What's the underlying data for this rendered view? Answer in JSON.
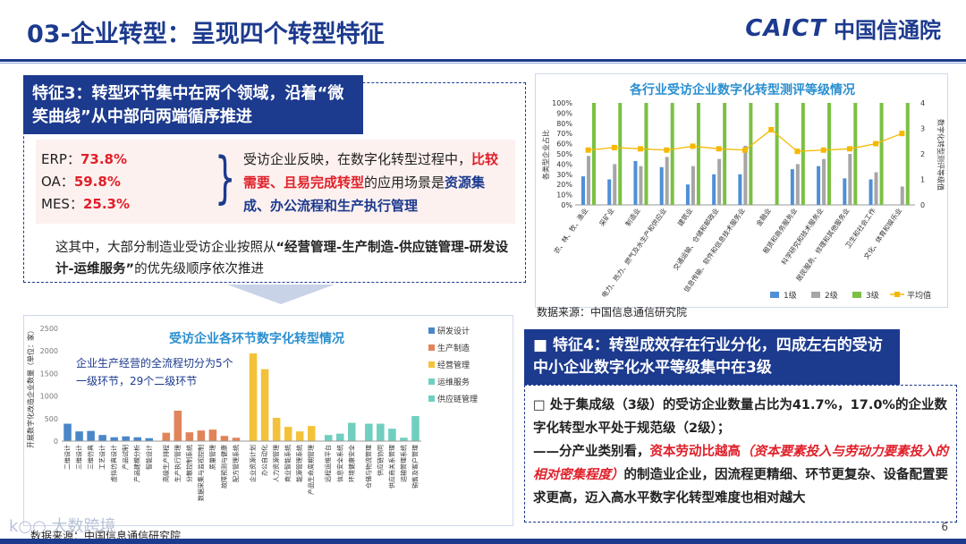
{
  "header": {
    "title": "03-企业转型：呈现四个转型特征",
    "logo_en": "CAICT",
    "logo_cn": "中国信通院"
  },
  "feature3": {
    "head": "特征3：转型环节集中在两个领域，沿着“微笑曲线”从中部向两端循序推进",
    "erp_label": "ERP：",
    "erp_value": "73.8%",
    "oa_label": "OA：",
    "oa_value": "59.8%",
    "mes_label": "MES：",
    "mes_value": "25.3%",
    "desc_1": "受访企业反映，在数字化转型过程中，",
    "desc_red": "比较需要、且易完成转型",
    "desc_2": "的应用场景是",
    "desc_blue": "资源集成、办公流程和生产执行管理",
    "note_1": "这其中，大部分制造业受访企业按照从",
    "note_bold": "“经营管理-生产制造-供应链管理-研发设计-运维服务”",
    "note_2": "的优先级顺序依次推进"
  },
  "chart_right_source": "数据来源：中国信息通信研究院",
  "chart_left_source": "数据来源：中国信息通信研究院",
  "feature4": {
    "head": "特征4：转型成效存在行业分化，四成左右的受访中小企业数字化水平等级集中在3级",
    "bullet": "处于集成级（3级）的受访企业数量占比为41.7%，17.0%的企业数字化转型水平处于规范级（2级）；",
    "sub_1": "——分产业类别看，",
    "sub_red": "资本劳动比越高",
    "sub_red_i": "（资本要素投入与劳动力要素投入的相对密集程度）",
    "sub_2": "的制造业企业，因流程更精细、环节更复杂、设备配置要求更高，迈入高水平数字化转型难度也相对越大"
  },
  "page_number": "6",
  "watermark": "k○○ 大数跨境",
  "chart_data": [
    {
      "type": "bar",
      "title": "各行业受访企业数字化转型测评等级情况",
      "ylabel": "各类型企业占比",
      "y2label": "数字化转型测评等级值",
      "ylim": [
        0,
        100
      ],
      "y2lim": [
        0,
        4
      ],
      "yticks": [
        "100%",
        "90%",
        "80%",
        "70%",
        "60%",
        "50%",
        "40%",
        "30%",
        "20%",
        "10%",
        "0%"
      ],
      "y2ticks": [
        "4",
        "3",
        "2",
        "1",
        "0"
      ],
      "categories": [
        "农、林、牧、渔业",
        "采矿业",
        "制造业",
        "电力、热力、燃气及水生产和供应业",
        "建筑业",
        "交通运输、仓储和邮政业",
        "信息传输、软件和信息技术服务业",
        "金融业",
        "租赁和商务服务业",
        "科学研究和技术服务业",
        "居民服务、修理和其他服务业",
        "卫生和社会工作",
        "文化、体育和娱乐业"
      ],
      "series": [
        {
          "name": "1级",
          "color": "#4f8fd6",
          "values": [
            28,
            25,
            43,
            37,
            20,
            30,
            30,
            0,
            35,
            38,
            26,
            25,
            0
          ]
        },
        {
          "name": "2级",
          "color": "#a6a6a6",
          "values": [
            48,
            40,
            38,
            47,
            38,
            45,
            58,
            0,
            40,
            45,
            50,
            32,
            18
          ]
        },
        {
          "name": "3级",
          "color": "#7bc043",
          "values": [
            100,
            100,
            100,
            100,
            100,
            100,
            100,
            100,
            100,
            100,
            100,
            100,
            100
          ]
        },
        {
          "name": "平均值",
          "color": "#f5b800",
          "values": [
            2.15,
            2.25,
            2.2,
            2.15,
            2.3,
            2.2,
            2.15,
            2.95,
            2.1,
            2.15,
            2.2,
            2.4,
            2.8
          ]
        }
      ]
    },
    {
      "type": "bar",
      "title": "受访企业各环节数字化转型情况",
      "ylabel": "开展数字化改造企业数量（单位：家）",
      "ylim": [
        0,
        2500
      ],
      "yticks": [
        "2500",
        "2000",
        "1500",
        "1000",
        "500",
        "0"
      ],
      "annotation": "企业生产经营的全流程切分为5个一级环节，29个二级环节",
      "legend": [
        "研发设计",
        "生产制造",
        "经营管理",
        "运维服务",
        "供应链管理"
      ],
      "legend_colors": [
        "#4a86c8",
        "#e0845a",
        "#f3c23a",
        "#6fcfc0",
        "#6fcfc0"
      ],
      "categories": [
        "二维设计",
        "三维设计",
        "三维仿真",
        "工艺设计",
        "虚拟仿真设计",
        "产品试制",
        "产品建模分析",
        "智能设计",
        "高级生产排程",
        "生产执行管理",
        "分散控制系统",
        "数据采集与监视控制",
        "质量管理",
        "故障预测与健康",
        "配方管理系统",
        "企业资源计划",
        "办公自动化",
        "人力资源管理",
        "商业智能系统",
        "能源管理系统",
        "产品生命周期管理",
        "远程运维平台",
        "信息安全系统",
        "环境健康安全",
        "仓储与物流管理",
        "供应链协同",
        "供应商关系管理",
        "运输管理系统",
        "销售及客户管理"
      ],
      "groups": [
        8,
        7,
        6,
        3,
        5
      ],
      "values": [
        390,
        220,
        230,
        140,
        90,
        110,
        90,
        70,
        190,
        680,
        200,
        240,
        260,
        120,
        80,
        1950,
        1600,
        520,
        320,
        220,
        340,
        140,
        170,
        410,
        390,
        390,
        280,
        80,
        560
      ]
    }
  ]
}
